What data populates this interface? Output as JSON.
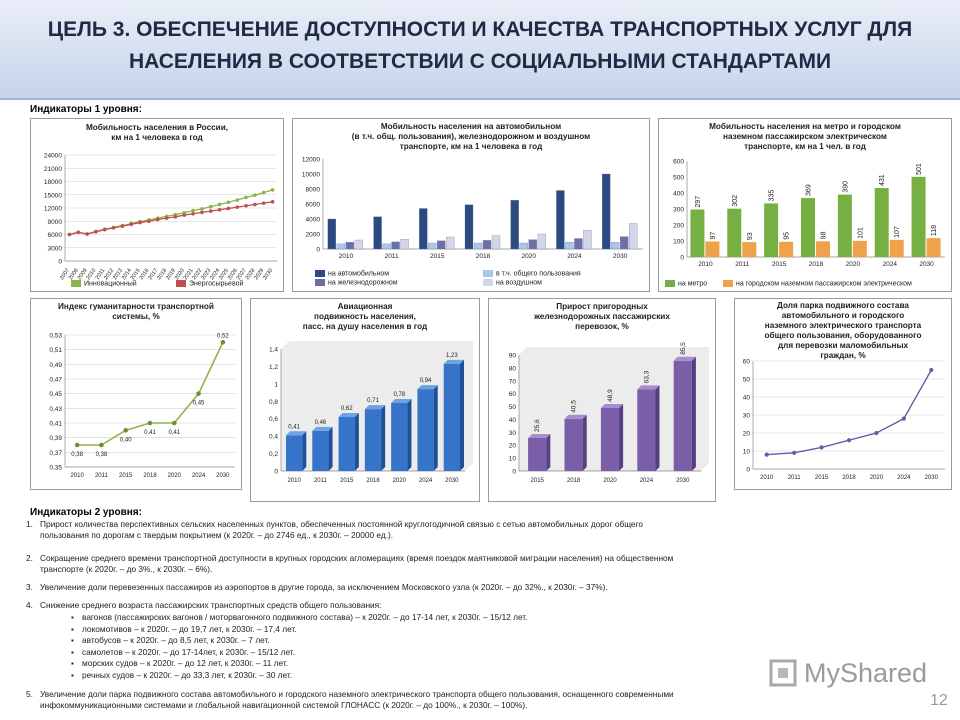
{
  "header": {
    "title_line1": "ЦЕЛЬ 3. ОБЕСПЕЧЕНИЕ ДОСТУПНОСТИ И КАЧЕСТВА ТРАНСПОРТНЫХ УСЛУГ ДЛЯ",
    "title_line2": "НАСЕЛЕНИЯ В СООТВЕТСТВИИ С СОЦИАЛЬНЫМИ СТАНДАРТАМИ"
  },
  "level1_label": "Индикаторы 1 уровня:",
  "level2_label": "Индикаторы 2 уровня:",
  "chart_data": [
    {
      "type": "line",
      "title": "Мобильность населения в России, км на 1 человека в год",
      "title_lines": [
        "Мобильность населения в России,",
        "км на 1 человека в год"
      ],
      "x": [
        "2007",
        "2008",
        "2009",
        "2010",
        "2011",
        "2012",
        "2013",
        "2014",
        "2015",
        "2016",
        "2017",
        "2018",
        "2019",
        "2020",
        "2021",
        "2022",
        "2023",
        "2024",
        "2025",
        "2026",
        "2027",
        "2028",
        "2029",
        "2030"
      ],
      "series": [
        {
          "name": "Инновационный",
          "color": "#8db34a",
          "values": [
            6000,
            6500,
            6100,
            6700,
            7200,
            7600,
            8000,
            8500,
            8900,
            9300,
            9700,
            10100,
            10500,
            10900,
            11400,
            11800,
            12300,
            12800,
            13300,
            13800,
            14400,
            14900,
            15500,
            16100
          ]
        },
        {
          "name": "Энергосырьевой",
          "color": "#c0504d",
          "values": [
            6000,
            6500,
            6100,
            6600,
            7100,
            7500,
            7900,
            8300,
            8700,
            9000,
            9400,
            9700,
            10000,
            10400,
            10700,
            11000,
            11300,
            11600,
            11900,
            12200,
            12500,
            12800,
            13100,
            13400
          ]
        }
      ],
      "yticks": [
        "0",
        "3000",
        "6000",
        "9000",
        "12000",
        "15000",
        "18000",
        "21000",
        "24000"
      ],
      "ylim": [
        0,
        24000
      ],
      "grid": true,
      "legend": "bottom"
    },
    {
      "type": "bar",
      "title": "Мобильность населения на автомобильном (в т.ч. общ. пользования), железнодорожном и воздушном транспорте, км на 1 человека в год",
      "title_lines": [
        "Мобильность населения на автомобильном",
        "(в т.ч. общ. пользования), железнодорожном и воздушном",
        "транспорте, км на 1 человека в год"
      ],
      "categories": [
        "2010",
        "2011",
        "2015",
        "2018",
        "2020",
        "2024",
        "2030"
      ],
      "series": [
        {
          "name": "на автомобильном",
          "color": "#2a4a80",
          "values": [
            4000,
            4300,
            5400,
            5900,
            6500,
            7800,
            10000
          ]
        },
        {
          "name": "в т.ч. общего пользования",
          "color": "#aac6e8",
          "values": [
            700,
            700,
            800,
            800,
            800,
            900,
            900
          ]
        },
        {
          "name": "на железнодорожном",
          "color": "#6e6fa8",
          "values": [
            900,
            950,
            1100,
            1150,
            1250,
            1400,
            1650
          ]
        },
        {
          "name": "на воздушном",
          "color": "#d5d5e8",
          "values": [
            1200,
            1300,
            1600,
            1800,
            2000,
            2500,
            3400
          ]
        }
      ],
      "yticks": [
        "0",
        "2000",
        "4000",
        "6000",
        "8000",
        "10000",
        "12000"
      ],
      "ylim": [
        0,
        12000
      ],
      "legend": "bottom"
    },
    {
      "type": "bar",
      "title": "Мобильность населения на метро и городском наземном пассажирском электрическом транспорте, км на 1 чел. в год",
      "title_lines": [
        "Мобильность населения на метро и городском",
        "наземном пассажирском электрическом",
        "транспорте, км на 1 чел. в год"
      ],
      "categories": [
        "2010",
        "2011",
        "2015",
        "2018",
        "2020",
        "2024",
        "2030"
      ],
      "series": [
        {
          "name": "на метро",
          "color": "#76b043",
          "values": [
            297,
            302,
            335,
            369,
            390,
            431,
            501
          ]
        },
        {
          "name": "на городском наземном пассажирском электрическом",
          "color": "#f0a24a",
          "values": [
            97,
            93,
            95,
            98,
            101,
            107,
            118
          ]
        }
      ],
      "yticks": [
        "0",
        "100",
        "200",
        "300",
        "400",
        "500",
        "600"
      ],
      "ylim": [
        0,
        600
      ],
      "legend": "bottom"
    },
    {
      "type": "line",
      "title": "Индекс гуманитарности транспортной системы, %",
      "title_lines": [
        "Индекс гуманитарности транспортной",
        "системы, %"
      ],
      "categories": [
        "2010",
        "2011",
        "2015",
        "2018",
        "2020",
        "2024",
        "2030"
      ],
      "values": [
        0.38,
        0.38,
        0.4,
        0.41,
        0.41,
        0.45,
        0.52
      ],
      "labels": [
        "0,38",
        "0,38",
        "0,40",
        "0,41",
        "0,41",
        "0,45",
        "0,52"
      ],
      "color": "#8db34a",
      "yticks": [
        "0,35",
        "0,37",
        "0,39",
        "0,41",
        "0,43",
        "0,45",
        "0,47",
        "0,49",
        "0,51",
        "0,53"
      ],
      "ylim": [
        0.35,
        0.53
      ],
      "grid": true
    },
    {
      "type": "bar",
      "title": "Авиационная подвижность населения, пасс. на душу населения в год",
      "title_lines": [
        "Авиационная",
        "подвижность населения,",
        "пасс. на душу населения в год"
      ],
      "categories": [
        "2010",
        "2011",
        "2015",
        "2018",
        "2020",
        "2024",
        "2030"
      ],
      "values": [
        0.41,
        0.46,
        0.62,
        0.71,
        0.78,
        0.94,
        1.23
      ],
      "labels": [
        "0,41",
        "0,46",
        "0,62",
        "0,71",
        "0,78",
        "0,94",
        "1,23"
      ],
      "color": "#3574c8",
      "yticks": [
        "0",
        "0,2",
        "0,4",
        "0,6",
        "0,8",
        "1",
        "1,2",
        "1,4"
      ],
      "ylim": [
        0,
        1.4
      ]
    },
    {
      "type": "bar",
      "title": "Прирост пригородных железнодорожных пассажирских перевозок, %",
      "title_lines": [
        "Прирост пригородных",
        "железнодорожных пассажирских",
        "перевозок, %"
      ],
      "categories": [
        "2015",
        "2018",
        "2020",
        "2024",
        "2030"
      ],
      "values": [
        25.6,
        40.5,
        48.9,
        63.3,
        85.5
      ],
      "labels": [
        "25,6",
        "40,5",
        "48,9",
        "63,3",
        "85,5"
      ],
      "color": "#7a5ea8",
      "yticks": [
        "0",
        "10",
        "20",
        "30",
        "40",
        "50",
        "60",
        "70",
        "80",
        "90"
      ],
      "ylim": [
        0,
        90
      ]
    },
    {
      "type": "line",
      "title": "Доля парка подвижного состава автомобильного и городского наземного электрического транспорта общего пользования, оборудованного для перевозки маломобильных граждан, %",
      "title_lines": [
        "Доля парка подвижного состава",
        "автомобильного и городского",
        "наземного электрического транспорта",
        "общего пользования, оборудованного",
        "для перевозки маломобильных",
        "граждан, %"
      ],
      "categories": [
        "2010",
        "2011",
        "2015",
        "2018",
        "2020",
        "2024",
        "2030"
      ],
      "values": [
        8,
        9,
        12,
        16,
        20,
        28,
        55
      ],
      "color": "#6a5aa8",
      "yticks": [
        "0",
        "10",
        "20",
        "30",
        "40",
        "50",
        "60"
      ],
      "ylim": [
        0,
        60
      ],
      "grid": true
    }
  ],
  "level2_items": [
    {
      "num": "1.",
      "line1": "Прирост количества перспективных сельских населенных пунктов, обеспеченных постоянной круглогодичной связью с сетью автомобильных дорог общего",
      "line2": "пользования по дорогам с твердым покрытием (к 2020г. – до 2746 ед., к 2030г. – 20000 ед.)."
    },
    {
      "num": "2.",
      "line1": "Сокращение среднего времени транспортной доступности в крупных городских агломерациях (время поездок маятниковой миграции населения) на общественном",
      "line2": "транспорте (к 2020г. – до 3%., к 2030г. – 6%)."
    },
    {
      "num": "3.",
      "line1": "Увеличение доли перевезенных пассажиров из аэропортов в другие города, за исключением Московского узла (к 2020г. – до 32%., к 2030г. – 37%)."
    },
    {
      "num": "4.",
      "line1": "Снижение среднего возраста пассажирских транспортных средств общего пользования:"
    },
    {
      "num": "5.",
      "line1": "Увеличение доли парка подвижного состава автомобильного и городского наземного электрического транспорта общего пользования, оснащенного современными",
      "line2": "инфокоммуникационными системами и глобальной навигационной системой ГЛОНАСС (к 2020г. – до 100%., к 2030г. – 100%)."
    }
  ],
  "level2_sub_items": [
    "вагонов (пассажирских вагонов / моторвагонного подвижного состава) – к 2020г. – до 17-14 лет, к 2030г. – 15/12 лет.",
    "локомотивов – к 2020г. – до 19,7 лет, к 2030г. – 17,4 лет.",
    "автобусов – к 2020г. – до 8,5 лет, к 2030г. – 7 лет.",
    "самолетов – к 2020г. – до 17-14лет, к 2030г. – 15/12 лет.",
    "морских судов – к 2020г. – до 12 лет, к 2030г. – 11 лет.",
    "речных судов – к 2020г. – до 33,3 лет, к 2030г. – 30 лет."
  ],
  "watermark": "MyShared",
  "page_number": "12"
}
